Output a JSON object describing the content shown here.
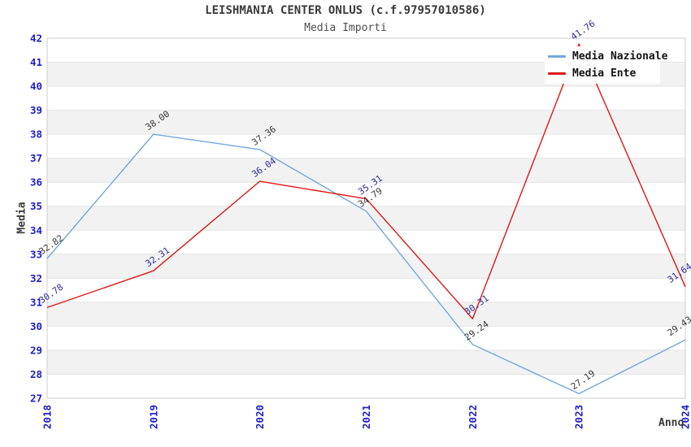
{
  "title": "LEISHMANIA CENTER ONLUS (c.f.97957010586)",
  "subtitle": "Media Importi",
  "chart_data": {
    "type": "line",
    "x": [
      2018,
      2019,
      2020,
      2021,
      2022,
      2023,
      2024
    ],
    "series": [
      {
        "name": "Media Nazionale",
        "color": "#74a7dc",
        "label_color": "#3a3a3a",
        "values": [
          32.82,
          38.0,
          37.36,
          34.79,
          29.24,
          27.19,
          29.43
        ]
      },
      {
        "name": "Media Ente",
        "color": "#e01717",
        "label_color": "#2b2b9e",
        "values": [
          30.78,
          32.31,
          36.04,
          35.31,
          30.31,
          41.76,
          31.64
        ]
      }
    ],
    "xlabel": "Anno",
    "ylabel": "Media",
    "ylim": [
      27,
      42
    ],
    "ytick_step": 1,
    "grid": "horizontal-bands",
    "legend_position": "top-right",
    "tick_label_color": "#1e1ecc",
    "band_color": "#f2f2f2",
    "grid_color": "#e4e4e4",
    "border_color": "#cccccc"
  }
}
